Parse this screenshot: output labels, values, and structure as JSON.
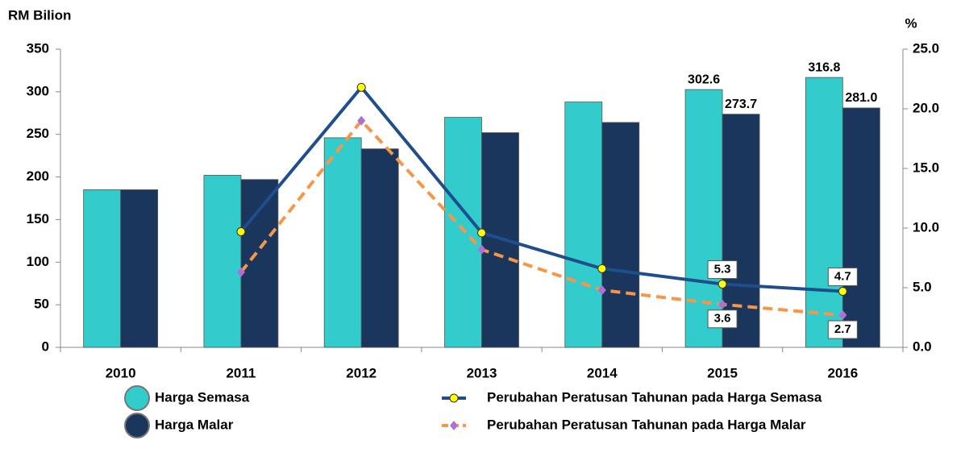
{
  "chart_data": {
    "type": "bar_line",
    "y_label": "RM Bilion",
    "y2_label": "%",
    "categories": [
      "2010",
      "2011",
      "2012",
      "2013",
      "2014",
      "2015",
      "2016"
    ],
    "series": [
      {
        "name": "Harga Semasa",
        "type": "bar",
        "color": "#33cccc",
        "values": [
          185,
          202,
          246,
          270,
          288,
          302.6,
          316.8
        ],
        "value_labels": [
          null,
          null,
          null,
          null,
          null,
          "302.6",
          "316.8"
        ]
      },
      {
        "name": "Harga Malar",
        "type": "bar",
        "color": "#1b365d",
        "values": [
          185,
          197,
          233,
          252,
          264,
          273.7,
          281.0
        ],
        "value_labels": [
          null,
          null,
          null,
          null,
          null,
          "273.7",
          "281.0"
        ]
      },
      {
        "name": "Perubahan Peratusan Tahunan pada Harga Semasa",
        "type": "line",
        "axis": "y2",
        "color": "#1f4e8c",
        "marker_color": "#ffff00",
        "marker": "circle",
        "values": [
          null,
          9.7,
          21.8,
          9.6,
          6.6,
          5.3,
          4.7
        ],
        "value_labels": [
          null,
          null,
          null,
          null,
          null,
          "5.3",
          "4.7"
        ]
      },
      {
        "name": "Perubahan Peratusan Tahunan pada Harga Malar",
        "type": "line",
        "axis": "y2",
        "color": "#f79646",
        "dashed": true,
        "marker_color": "#b070d0",
        "marker": "diamond",
        "values": [
          null,
          6.3,
          19.0,
          8.2,
          4.8,
          3.6,
          2.7
        ],
        "value_labels": [
          null,
          null,
          null,
          null,
          null,
          "3.6",
          "2.7"
        ]
      }
    ],
    "ylim": [
      0,
      350
    ],
    "yticks": [
      0,
      50,
      100,
      150,
      200,
      250,
      300,
      350
    ],
    "y2lim": [
      0,
      25
    ],
    "y2ticks": [
      {
        "value": 0,
        "label": "0.0"
      },
      {
        "value": 5,
        "label": "5.0"
      },
      {
        "value": 10,
        "label": "10.0"
      },
      {
        "value": 15,
        "label": "15.0"
      },
      {
        "value": 20,
        "label": "20.0"
      },
      {
        "value": 25,
        "label": "25.0"
      }
    ]
  }
}
